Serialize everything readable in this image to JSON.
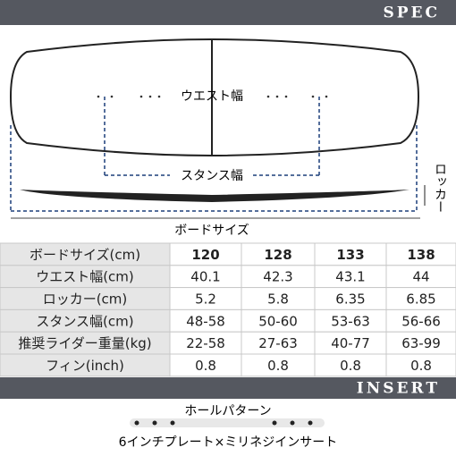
{
  "header": {
    "title": "SPEC"
  },
  "diagram": {
    "waist_label": "ウエスト幅",
    "stance_label": "スタンス幅",
    "rocker_label": "ロッカー",
    "size_label": "ボードサイズ"
  },
  "table": {
    "header": [
      "ボードサイズ(cm)",
      "120",
      "128",
      "133",
      "138"
    ],
    "rows": [
      [
        "ウエスト幅(cm)",
        "40.1",
        "42.3",
        "43.1",
        "44"
      ],
      [
        "ロッカー(cm)",
        "5.2",
        "5.8",
        "6.35",
        "6.85"
      ],
      [
        "スタンス幅(cm)",
        "48-58",
        "50-60",
        "53-63",
        "56-66"
      ],
      [
        "推奨ライダー重量(kg)",
        "22-58",
        "27-63",
        "40-77",
        "63-99"
      ],
      [
        "フィン(inch)",
        "0.8",
        "0.8",
        "0.8",
        "0.8"
      ]
    ]
  },
  "insert": {
    "title": "INSERT",
    "pattern_label": "ホールパターン",
    "caption": "6インチプレート×ミリネジインサート"
  }
}
